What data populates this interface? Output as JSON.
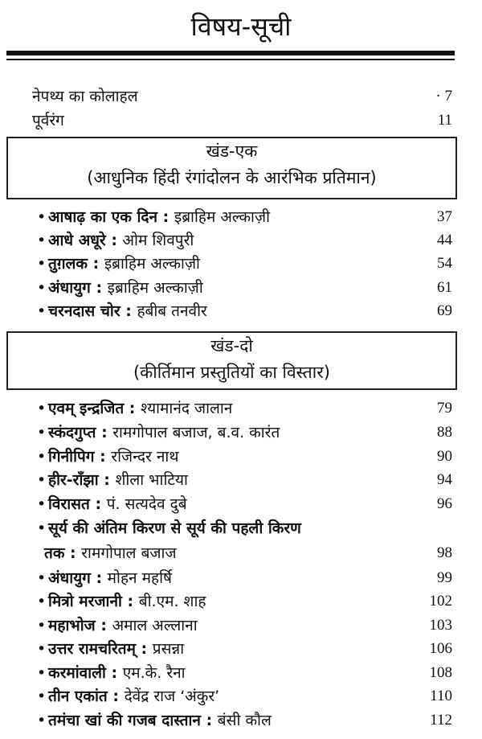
{
  "title": "विषय-सूची",
  "intro": [
    {
      "title": "नेपथ्य का कोलाहल",
      "page": "· 7"
    },
    {
      "title": "पूर्वरंग",
      "page": "11"
    }
  ],
  "sections": [
    {
      "heading": "खंड-एक",
      "subtitle": "(आधुनिक हिंदी रंगांदोलन के आरंभिक प्रतिमान)",
      "entries": [
        {
          "title": "आषाढ़ का एक दिन",
          "director": "इब्राहिम अल्काज़ी",
          "page": "37"
        },
        {
          "title": "आधे अधूरे",
          "director": "ओम शिवपुरी",
          "page": "44"
        },
        {
          "title": "तुग़लक",
          "director": "इब्राहिम अल्काज़ी",
          "page": "54"
        },
        {
          "title": "अंधायुग",
          "director": "इब्राहिम अल्काज़ी",
          "page": "61"
        },
        {
          "title": "चरनदास चोर",
          "director": "हबीब तनवीर",
          "page": "69"
        }
      ]
    },
    {
      "heading": "खंड-दो",
      "subtitle": "(कीर्तिमान प्रस्तुतियों का विस्तार)",
      "entries": [
        {
          "title": "एवम् इन्द्रजित",
          "director": "श्यामानंद जालान",
          "page": "79"
        },
        {
          "title": "स्कंदगुप्त",
          "director": "रामगोपाल बजाज, ब.व. कारंत",
          "page": "88"
        },
        {
          "title": "गिनीपिग",
          "director": "रजिन्दर नाथ",
          "page": "90"
        },
        {
          "title": "हीर-राँझा",
          "director": "शीला भाटिया",
          "page": "94"
        },
        {
          "title": "विरासत",
          "director": "पं. सत्यदेव दुबे",
          "page": "96"
        },
        {
          "title": "सूर्य की अंतिम किरण से सूर्य की पहली किरण",
          "title_cont": "तक",
          "director": "रामगोपाल बजाज",
          "page": "98"
        },
        {
          "title": "अंधायुग",
          "director": "मोहन महर्षि",
          "page": "99"
        },
        {
          "title": "मित्रो मरजानी",
          "director": "बी.एम. शाह",
          "page": "102"
        },
        {
          "title": "महाभोज",
          "director": "अमाल अल्लाना",
          "page": "103"
        },
        {
          "title": "उत्तर रामचरितम्",
          "director": "प्रसन्ना",
          "page": "106"
        },
        {
          "title": "करमांवाली",
          "director": "एम.के. रैना",
          "page": "108"
        },
        {
          "title": "तीन एकांत",
          "director": "देवेंद्र राज ‘अंकुर’",
          "page": "110"
        },
        {
          "title": "तमंचा खां की गजब दास्तान",
          "director": "बंसी कौल",
          "page": "112"
        }
      ]
    }
  ]
}
